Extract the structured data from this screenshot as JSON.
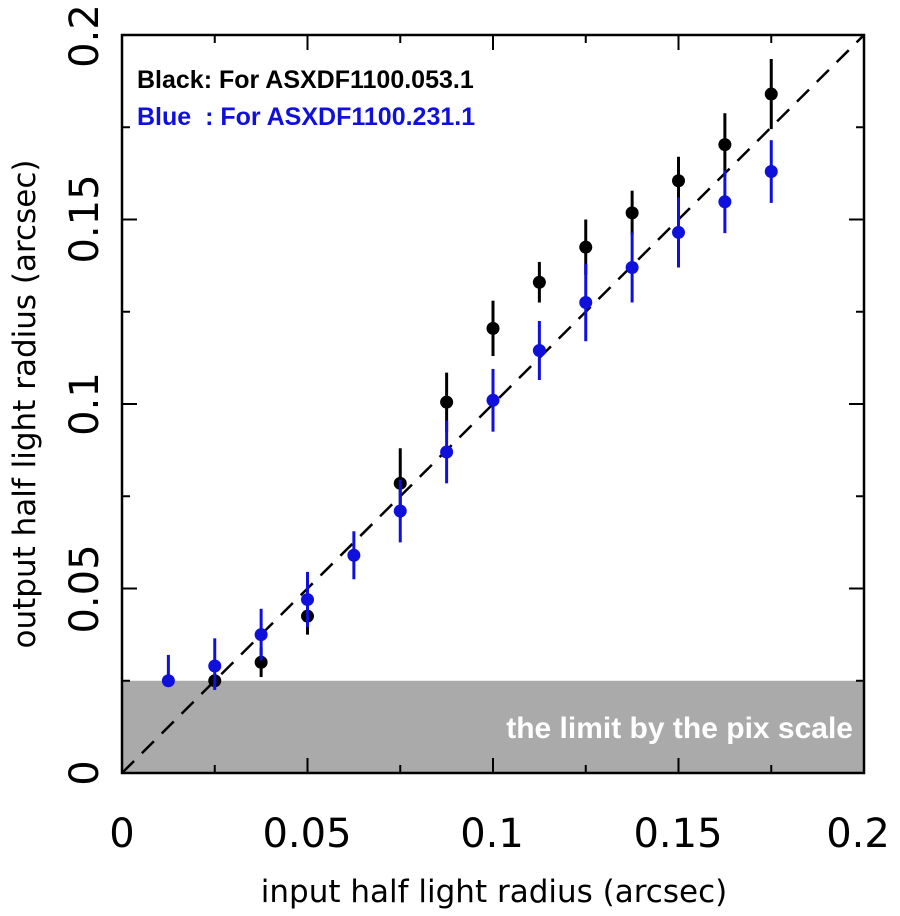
{
  "chart_data": {
    "type": "scatter",
    "xlabel": "input half light radius (arcsec)",
    "ylabel": "output half light radius (arcsec)",
    "xlim": [
      0,
      0.2
    ],
    "ylim": [
      0,
      0.2
    ],
    "x_ticks": [
      "0",
      "0.05",
      "0.1",
      "0.15",
      "0.2"
    ],
    "y_ticks": [
      "0",
      "0.05",
      "0.1",
      "0.15",
      "0.2"
    ],
    "shaded_region": {
      "y_from": 0,
      "y_to": 0.025,
      "color": "#aaaaaa",
      "label": "the limit by the pix scale"
    },
    "reference_line": {
      "style": "dashed",
      "from": [
        0,
        0
      ],
      "to": [
        0.2,
        0.2
      ]
    },
    "series": [
      {
        "name": "Black",
        "legend": "Black: For ASXDF1100.053.1",
        "color": "#000000",
        "points": [
          {
            "x": 0.025,
            "y": 0.025,
            "err_lo": 0.0,
            "err_hi": 0.0
          },
          {
            "x": 0.0375,
            "y": 0.03,
            "err_lo": 0.004,
            "err_hi": 0.004
          },
          {
            "x": 0.05,
            "y": 0.0425,
            "err_lo": 0.005,
            "err_hi": 0.005
          },
          {
            "x": 0.075,
            "y": 0.0785,
            "err_lo": 0.0095,
            "err_hi": 0.0095
          },
          {
            "x": 0.0875,
            "y": 0.1005,
            "err_lo": 0.008,
            "err_hi": 0.008
          },
          {
            "x": 0.1,
            "y": 0.1205,
            "err_lo": 0.0075,
            "err_hi": 0.0075
          },
          {
            "x": 0.1125,
            "y": 0.133,
            "err_lo": 0.0055,
            "err_hi": 0.0055
          },
          {
            "x": 0.125,
            "y": 0.1425,
            "err_lo": 0.0075,
            "err_hi": 0.0075
          },
          {
            "x": 0.1375,
            "y": 0.1518,
            "err_lo": 0.006,
            "err_hi": 0.006
          },
          {
            "x": 0.15,
            "y": 0.1605,
            "err_lo": 0.0065,
            "err_hi": 0.0065
          },
          {
            "x": 0.1625,
            "y": 0.1703,
            "err_lo": 0.0085,
            "err_hi": 0.0085
          },
          {
            "x": 0.175,
            "y": 0.184,
            "err_lo": 0.0095,
            "err_hi": 0.0095
          }
        ]
      },
      {
        "name": "Blue",
        "legend": "Blue  : For ASXDF1100.231.1",
        "color": "#1010dd",
        "points": [
          {
            "x": 0.0125,
            "y": 0.025,
            "err_lo": 0.0,
            "err_hi": 0.007
          },
          {
            "x": 0.025,
            "y": 0.029,
            "err_lo": 0.0065,
            "err_hi": 0.0075
          },
          {
            "x": 0.0375,
            "y": 0.0375,
            "err_lo": 0.007,
            "err_hi": 0.007
          },
          {
            "x": 0.05,
            "y": 0.047,
            "err_lo": 0.0075,
            "err_hi": 0.0075
          },
          {
            "x": 0.0625,
            "y": 0.059,
            "err_lo": 0.0065,
            "err_hi": 0.0065
          },
          {
            "x": 0.075,
            "y": 0.071,
            "err_lo": 0.0085,
            "err_hi": 0.0085
          },
          {
            "x": 0.0875,
            "y": 0.087,
            "err_lo": 0.0085,
            "err_hi": 0.0085
          },
          {
            "x": 0.1,
            "y": 0.101,
            "err_lo": 0.0085,
            "err_hi": 0.0085
          },
          {
            "x": 0.1125,
            "y": 0.1145,
            "err_lo": 0.008,
            "err_hi": 0.008
          },
          {
            "x": 0.125,
            "y": 0.1275,
            "err_lo": 0.0105,
            "err_hi": 0.0105
          },
          {
            "x": 0.1375,
            "y": 0.137,
            "err_lo": 0.0095,
            "err_hi": 0.0095
          },
          {
            "x": 0.15,
            "y": 0.1465,
            "err_lo": 0.0095,
            "err_hi": 0.0095
          },
          {
            "x": 0.1625,
            "y": 0.1548,
            "err_lo": 0.0085,
            "err_hi": 0.0085
          },
          {
            "x": 0.175,
            "y": 0.163,
            "err_lo": 0.0085,
            "err_hi": 0.0085
          }
        ]
      }
    ]
  }
}
